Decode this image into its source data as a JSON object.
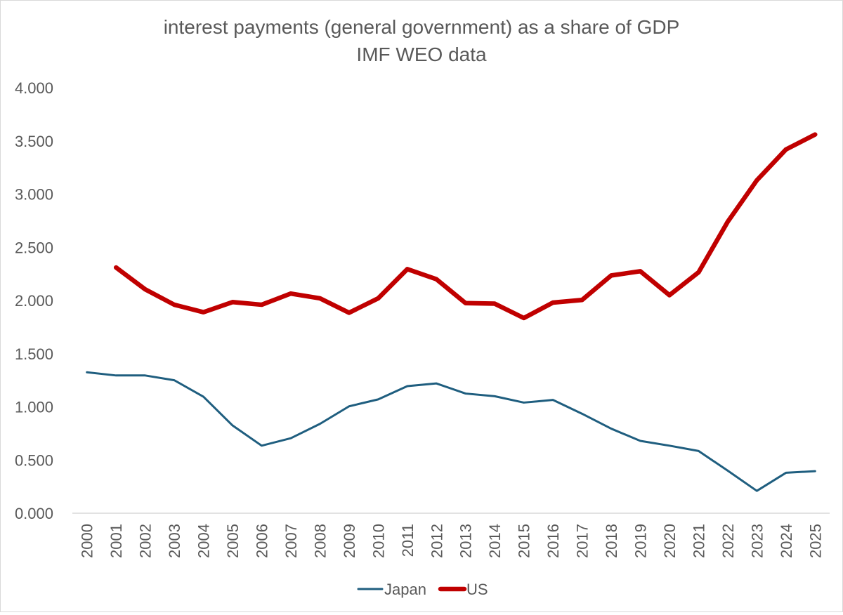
{
  "chart_data": {
    "type": "line",
    "title": "interest payments (general government) as a share of GDP",
    "subtitle": "IMF WEO data",
    "xlabel": "",
    "ylabel": "",
    "ylim": [
      0,
      4
    ],
    "yticks": [
      0,
      0.5,
      1,
      1.5,
      2,
      2.5,
      3,
      3.5,
      4
    ],
    "ytick_labels": [
      "0.000",
      "0.500",
      "1.000",
      "1.500",
      "2.000",
      "2.500",
      "3.000",
      "3.500",
      "4.000"
    ],
    "grid": false,
    "legend_position": "bottom",
    "categories": [
      "2000",
      "2001",
      "2002",
      "2003",
      "2004",
      "2005",
      "2006",
      "2007",
      "2008",
      "2009",
      "2010",
      "2011",
      "2012",
      "2013",
      "2014",
      "2015",
      "2016",
      "2017",
      "2018",
      "2019",
      "2020",
      "2021",
      "2022",
      "2023",
      "2024",
      "2025"
    ],
    "series": [
      {
        "name": "Japan",
        "color": "#1f5e7f",
        "values": [
          1.325,
          1.295,
          1.295,
          1.25,
          1.095,
          0.825,
          0.635,
          0.705,
          0.84,
          1.005,
          1.07,
          1.195,
          1.22,
          1.125,
          1.1,
          1.04,
          1.065,
          0.935,
          0.795,
          0.68,
          0.635,
          0.585,
          0.4,
          0.21,
          0.38,
          0.395
        ]
      },
      {
        "name": "US",
        "color": "#c00000",
        "values": [
          null,
          2.31,
          2.105,
          1.96,
          1.89,
          1.985,
          1.96,
          2.065,
          2.02,
          1.885,
          2.02,
          2.295,
          2.2,
          1.975,
          1.97,
          1.835,
          1.98,
          2.005,
          2.235,
          2.275,
          2.05,
          2.265,
          2.74,
          3.13,
          3.42,
          3.56
        ]
      }
    ]
  }
}
